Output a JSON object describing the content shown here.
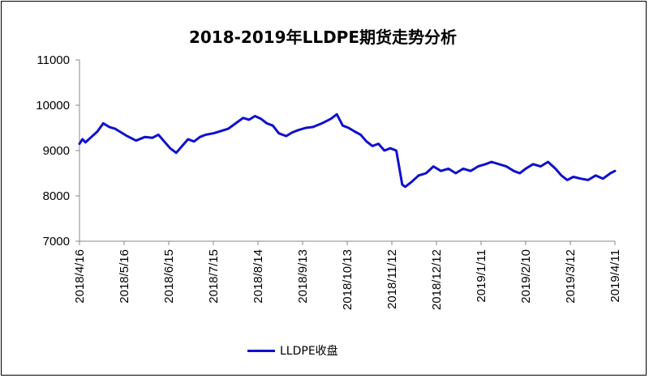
{
  "chart_data": {
    "type": "line",
    "title": "2018-2019年LLDPE期货走势分析",
    "xlabel": "",
    "ylabel": "",
    "ylim": [
      7000,
      11000
    ],
    "yticks": [
      7000,
      8000,
      9000,
      10000,
      11000
    ],
    "xtick_labels": [
      "2018/4/16",
      "2018/5/16",
      "2018/6/15",
      "2018/7/15",
      "2018/8/14",
      "2018/9/13",
      "2018/10/13",
      "2018/11/12",
      "2018/12/12",
      "2019/1/11",
      "2019/2/10",
      "2019/3/12",
      "2019/4/11"
    ],
    "legend_position": "bottom",
    "grid": false,
    "series": [
      {
        "name": "LLDPE收盘",
        "color": "#1010cc",
        "x": [
          "2018-04-16",
          "2018-04-18",
          "2018-04-20",
          "2018-04-24",
          "2018-04-28",
          "2018-05-02",
          "2018-05-06",
          "2018-05-10",
          "2018-05-14",
          "2018-05-18",
          "2018-05-24",
          "2018-05-30",
          "2018-06-04",
          "2018-06-08",
          "2018-06-12",
          "2018-06-16",
          "2018-06-20",
          "2018-06-24",
          "2018-06-28",
          "2018-07-02",
          "2018-07-06",
          "2018-07-10",
          "2018-07-15",
          "2018-07-20",
          "2018-07-25",
          "2018-07-30",
          "2018-08-04",
          "2018-08-08",
          "2018-08-12",
          "2018-08-16",
          "2018-08-20",
          "2018-08-24",
          "2018-08-28",
          "2018-09-02",
          "2018-09-06",
          "2018-09-10",
          "2018-09-15",
          "2018-09-20",
          "2018-09-26",
          "2018-10-02",
          "2018-10-06",
          "2018-10-10",
          "2018-10-14",
          "2018-10-18",
          "2018-10-22",
          "2018-10-26",
          "2018-10-30",
          "2018-11-03",
          "2018-11-07",
          "2018-11-11",
          "2018-11-15",
          "2018-11-19",
          "2018-11-21",
          "2018-11-25",
          "2018-11-30",
          "2018-12-05",
          "2018-12-10",
          "2018-12-15",
          "2018-12-20",
          "2018-12-25",
          "2018-12-30",
          "2019-01-04",
          "2019-01-09",
          "2019-01-14",
          "2019-01-18",
          "2019-01-23",
          "2019-01-28",
          "2019-02-02",
          "2019-02-06",
          "2019-02-10",
          "2019-02-15",
          "2019-02-20",
          "2019-02-25",
          "2019-03-02",
          "2019-03-06",
          "2019-03-10",
          "2019-03-14",
          "2019-03-19",
          "2019-03-24",
          "2019-03-29",
          "2019-04-03",
          "2019-04-08",
          "2019-04-11"
        ],
        "values": [
          9150,
          9250,
          9180,
          9300,
          9420,
          9600,
          9520,
          9480,
          9400,
          9320,
          9220,
          9300,
          9280,
          9350,
          9200,
          9050,
          8950,
          9100,
          9250,
          9200,
          9300,
          9350,
          9380,
          9430,
          9480,
          9600,
          9720,
          9680,
          9760,
          9700,
          9600,
          9550,
          9380,
          9320,
          9400,
          9450,
          9500,
          9520,
          9600,
          9700,
          9800,
          9550,
          9500,
          9420,
          9350,
          9200,
          9100,
          9150,
          9000,
          9050,
          9000,
          8250,
          8200,
          8300,
          8450,
          8500,
          8650,
          8550,
          8600,
          8500,
          8600,
          8550,
          8650,
          8700,
          8750,
          8700,
          8650,
          8550,
          8500,
          8600,
          8700,
          8650,
          8750,
          8600,
          8450,
          8350,
          8420,
          8380,
          8350,
          8450,
          8380,
          8500,
          8550
        ]
      }
    ]
  }
}
